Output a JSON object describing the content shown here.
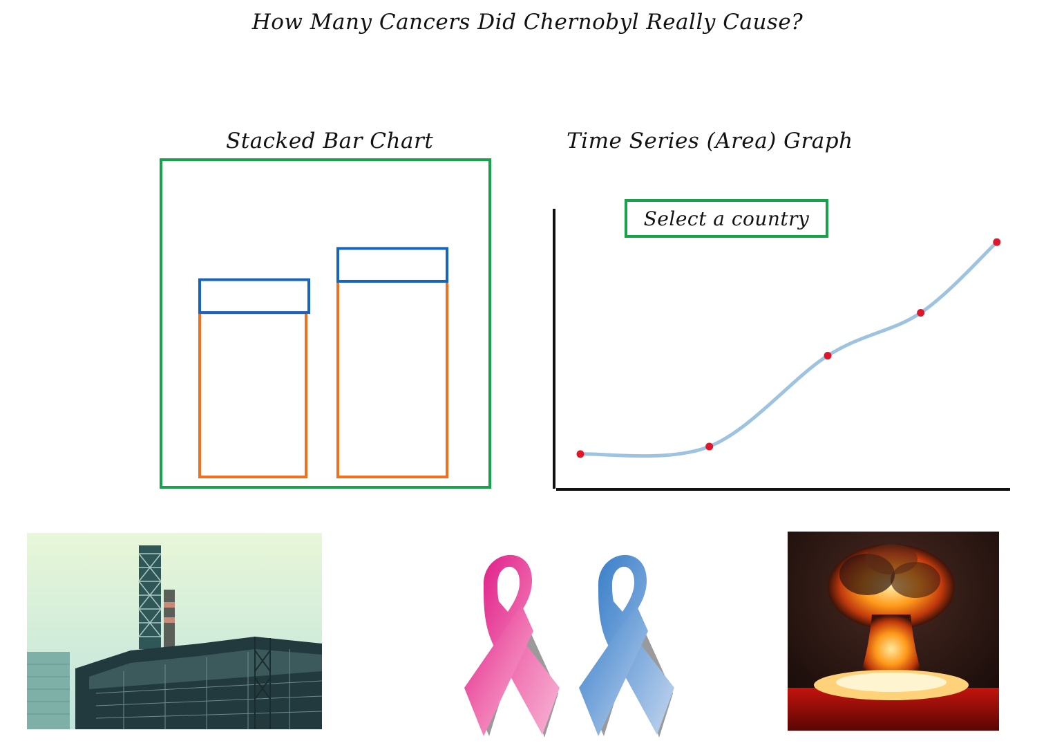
{
  "page": {
    "title": "How Many Cancers Did Chernobyl Really Cause?"
  },
  "stacked_bar": {
    "title": "Stacked Bar Chart",
    "frame_color": "#16a34a",
    "bottom_color": "#f07020",
    "top_color": "#1565c0",
    "bars": [
      {
        "bottom": 100,
        "top": 20
      },
      {
        "bottom": 119,
        "top": 20
      }
    ],
    "ymax": 185
  },
  "area_graph": {
    "title": "Time Series (Area) Graph",
    "select_label": "Select a country",
    "line_color": "#9ec3e0",
    "point_color": "#e0162b",
    "axis_color": "#111111",
    "points": [
      {
        "x": 0,
        "y": 14
      },
      {
        "x": 30.5,
        "y": 17
      },
      {
        "x": 58.5,
        "y": 53
      },
      {
        "x": 80.5,
        "y": 70
      },
      {
        "x": 98.5,
        "y": 98
      }
    ]
  },
  "images": {
    "plant": "chernobyl-power-plant",
    "ribbons": "awareness-ribbons-pink-blue",
    "explosion": "nuclear-explosion-mushroom-cloud"
  }
}
